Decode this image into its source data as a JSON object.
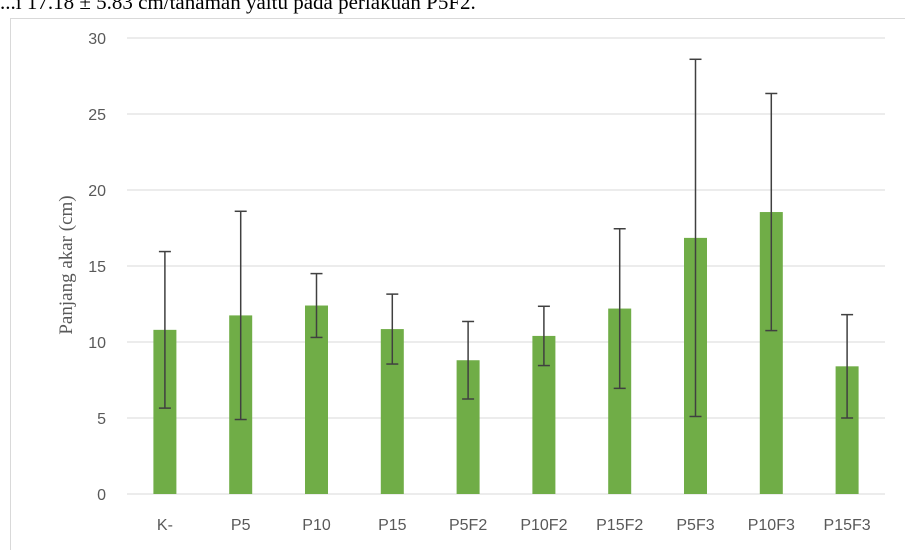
{
  "top_text": "...i 17.18 ± 5.83 cm/tanaman yaitu pada perlakuan P5F2.",
  "chart_data": {
    "type": "bar",
    "categories": [
      "K-",
      "P5",
      "P10",
      "P15",
      "P5F2",
      "P10F2",
      "P15F2",
      "P5F3",
      "P10F3",
      "P15F3"
    ],
    "values": [
      10.8,
      11.75,
      12.4,
      10.85,
      8.8,
      10.4,
      12.2,
      16.85,
      18.55,
      8.4
    ],
    "error": [
      5.15,
      6.85,
      2.1,
      2.3,
      2.55,
      1.95,
      5.25,
      11.75,
      7.8,
      3.4
    ],
    "ylabel": "Panjang akar (cm)",
    "ylim": [
      0,
      30
    ],
    "yticks": [
      "0",
      "5",
      "10",
      "15",
      "20",
      "25",
      "30"
    ],
    "grid": true,
    "bar_color": "#70ad47",
    "error_color": "#404040",
    "grid_color": "#d9d9d9"
  }
}
